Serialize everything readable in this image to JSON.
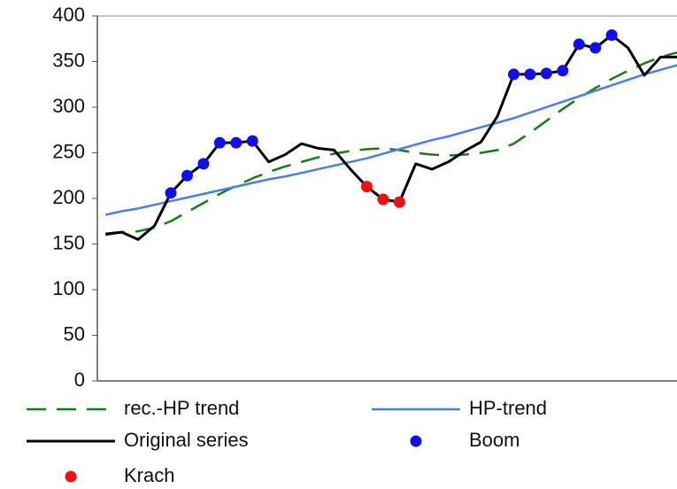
{
  "chart_data": {
    "type": "line",
    "x": [
      1,
      2,
      3,
      4,
      5,
      6,
      7,
      8,
      9,
      10,
      11,
      12,
      13,
      14,
      15,
      16,
      17,
      18,
      19,
      20,
      21,
      22,
      23,
      24,
      25,
      26,
      27,
      28,
      29,
      30,
      31,
      32,
      33,
      34,
      35,
      36
    ],
    "xlim": [
      0.5,
      36
    ],
    "ylim": [
      0,
      400
    ],
    "yticks": [
      0,
      50,
      100,
      150,
      200,
      250,
      300,
      350,
      400
    ],
    "grid": false,
    "series": [
      {
        "name": "rec.-HP trend",
        "color": "#1a7a1a",
        "style": "dashed",
        "values": [
          160,
          163,
          164,
          168,
          175,
          185,
          195,
          205,
          214,
          222,
          229,
          235,
          240,
          245,
          249,
          252,
          254,
          255,
          253,
          250,
          248,
          247,
          248,
          250,
          253,
          260,
          272,
          285,
          298,
          310,
          321,
          331,
          340,
          348,
          355,
          360
        ]
      },
      {
        "name": "HP-trend",
        "color": "#4a7ee8",
        "style": "solid",
        "values": [
          182,
          186,
          189,
          193,
          197,
          201,
          205,
          209,
          213,
          217,
          221,
          224,
          228,
          232,
          236,
          240,
          244,
          249,
          254,
          259,
          264,
          268,
          273,
          278,
          283,
          288,
          294,
          300,
          306,
          312,
          318,
          324,
          330,
          336,
          341,
          346
        ]
      },
      {
        "name": "Original series",
        "color": "#000000",
        "style": "solid",
        "values": [
          161,
          163,
          155,
          170,
          206,
          225,
          238,
          261,
          261,
          263,
          240,
          248,
          260,
          255,
          253,
          232,
          213,
          199,
          196,
          238,
          232,
          240,
          252,
          262,
          290,
          336,
          336,
          337,
          340,
          369,
          365,
          379,
          365,
          335,
          355,
          355
        ]
      },
      {
        "name": "Boom",
        "color": "#1010ee",
        "style": "markers",
        "values": [
          null,
          null,
          null,
          null,
          206,
          225,
          238,
          261,
          261,
          263,
          null,
          null,
          null,
          null,
          null,
          null,
          null,
          null,
          null,
          null,
          null,
          null,
          null,
          null,
          null,
          336,
          336,
          337,
          340,
          369,
          365,
          379,
          null,
          null,
          null,
          null
        ]
      },
      {
        "name": "Krach",
        "color": "#ee1010",
        "style": "markers",
        "values": [
          null,
          null,
          null,
          null,
          null,
          null,
          null,
          null,
          null,
          null,
          null,
          null,
          null,
          null,
          null,
          null,
          213,
          199,
          196,
          null,
          null,
          null,
          null,
          null,
          null,
          null,
          null,
          null,
          null,
          null,
          null,
          null,
          null,
          null,
          null,
          null
        ]
      }
    ]
  }
}
